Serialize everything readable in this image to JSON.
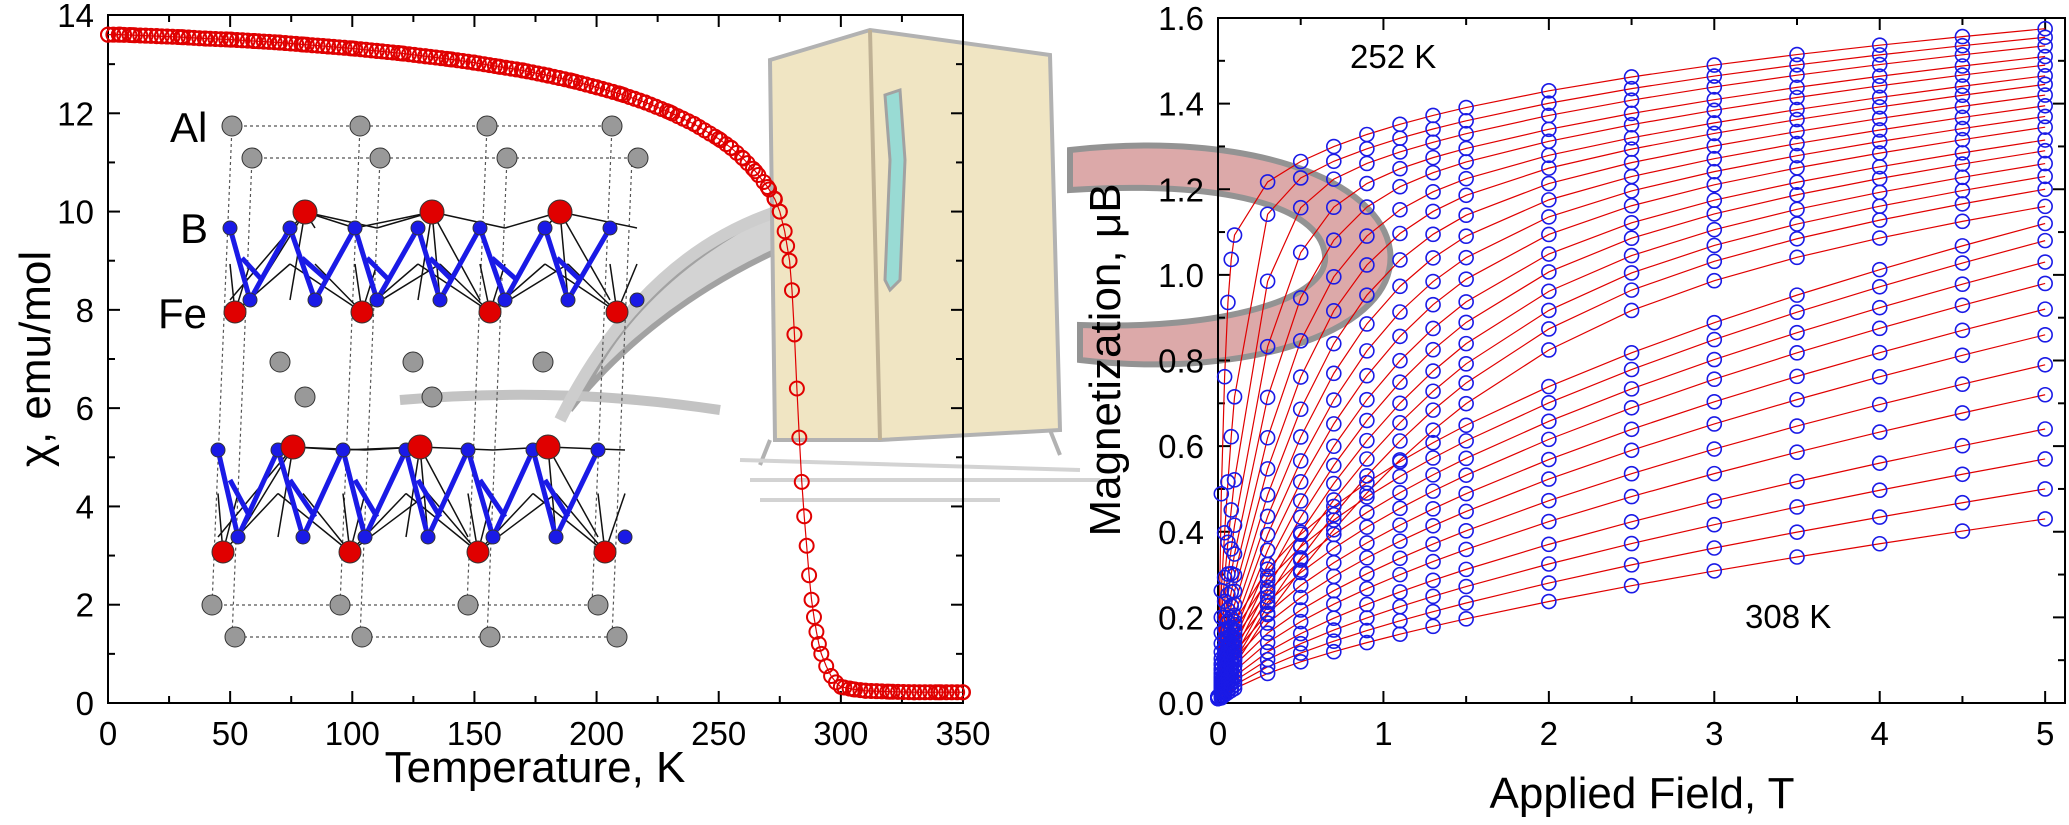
{
  "figure": "Magnetocaloric AlFe2B2: susceptibility and magnetization isotherms",
  "colors": {
    "chi": "#e00000",
    "iso_line": "#e00000",
    "iso_marker": "#1a1ae6",
    "fe": "#e00000",
    "b": "#1a1ae6",
    "al": "#999999",
    "magnet_red": "#d9a0a0",
    "fridge": "#efe3bd",
    "fridge_handle": "#8ed8d0"
  },
  "chart_data": [
    {
      "type": "scatter",
      "title": "",
      "xlabel": "Temperature, K",
      "ylabel": "χ, emu/mol",
      "xlim": [
        0,
        350
      ],
      "ylim": [
        0,
        14
      ],
      "xticks": [
        0,
        50,
        100,
        150,
        200,
        250,
        300,
        350
      ],
      "yticks": [
        0,
        2,
        4,
        6,
        8,
        10,
        12,
        14
      ],
      "series": [
        {
          "name": "chi(T)",
          "x": [
            0,
            5,
            10,
            20,
            30,
            40,
            50,
            60,
            70,
            80,
            90,
            100,
            110,
            120,
            130,
            140,
            150,
            160,
            170,
            180,
            190,
            200,
            210,
            220,
            230,
            240,
            250,
            255,
            260,
            265,
            270,
            273,
            275,
            277,
            278,
            279,
            280,
            281,
            282,
            283,
            284,
            285,
            286,
            287,
            288,
            289,
            290,
            291,
            292,
            294,
            296,
            298,
            300,
            305,
            310,
            320,
            330,
            340,
            350
          ],
          "y": [
            13.6,
            13.6,
            13.59,
            13.57,
            13.55,
            13.52,
            13.5,
            13.47,
            13.44,
            13.4,
            13.36,
            13.32,
            13.27,
            13.22,
            13.16,
            13.1,
            13.03,
            12.95,
            12.87,
            12.77,
            12.66,
            12.53,
            12.39,
            12.22,
            12.02,
            11.78,
            11.48,
            11.3,
            11.08,
            10.82,
            10.5,
            10.25,
            10.0,
            9.6,
            9.3,
            9.0,
            8.4,
            7.5,
            6.4,
            5.4,
            4.5,
            3.8,
            3.2,
            2.6,
            2.1,
            1.75,
            1.45,
            1.2,
            1.0,
            0.75,
            0.55,
            0.42,
            0.33,
            0.28,
            0.25,
            0.23,
            0.22,
            0.22,
            0.22
          ]
        }
      ],
      "annotations": [
        "Al",
        "B",
        "Fe"
      ]
    },
    {
      "type": "line",
      "title": "",
      "xlabel": "Applied Field, T",
      "ylabel": "Magnetization, μB",
      "xlim": [
        0,
        5
      ],
      "ylim": [
        0,
        1.6
      ],
      "xticks": [
        0,
        1,
        2,
        3,
        4,
        5
      ],
      "yticks": [
        0.0,
        0.2,
        0.4,
        0.6,
        0.8,
        1.0,
        1.2,
        1.4,
        1.6
      ],
      "field_points": [
        0,
        0.02,
        0.04,
        0.06,
        0.08,
        0.1,
        0.3,
        0.5,
        0.7,
        0.9,
        1.1,
        1.3,
        1.5,
        2.0,
        2.5,
        3.0,
        3.5,
        4.0,
        4.5,
        5.0
      ],
      "series_temperatures_K": [
        252,
        254,
        256,
        258,
        260,
        262,
        264,
        266,
        268,
        270,
        272,
        274,
        276,
        278,
        280,
        282,
        284,
        286,
        288,
        290,
        292,
        294,
        296,
        298,
        300,
        302,
        304,
        306,
        308
      ],
      "series_endpoints_at_5T": [
        1.575,
        1.555,
        1.535,
        1.51,
        1.49,
        1.465,
        1.445,
        1.42,
        1.395,
        1.37,
        1.345,
        1.315,
        1.29,
        1.26,
        1.23,
        1.2,
        1.16,
        1.12,
        1.08,
        1.03,
        0.98,
        0.92,
        0.86,
        0.79,
        0.72,
        0.64,
        0.57,
        0.5,
        0.43
      ],
      "annotations": [
        "252 K",
        "308 K"
      ]
    }
  ]
}
